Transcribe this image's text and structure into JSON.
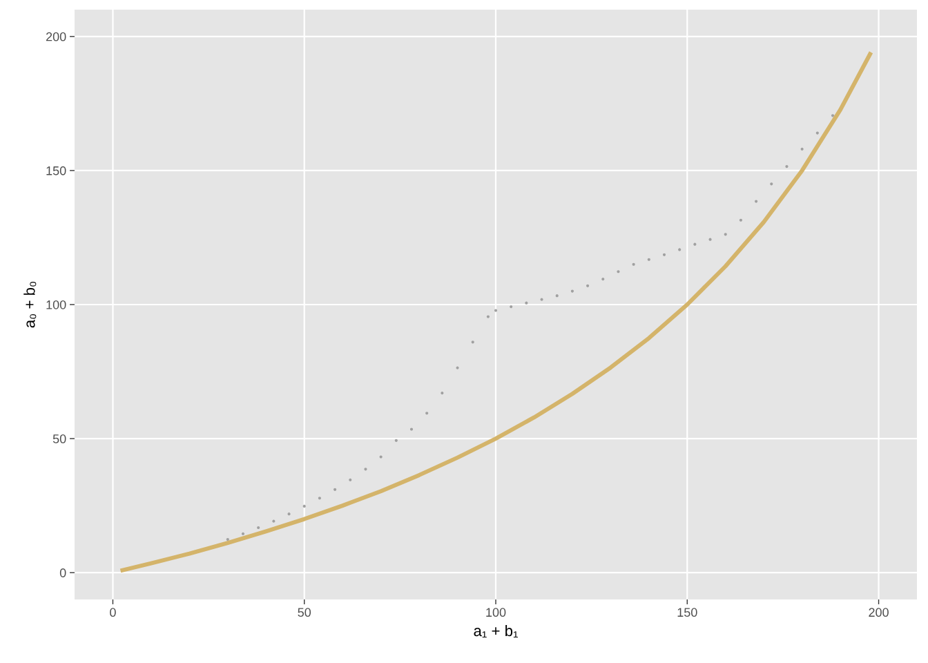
{
  "chart_data": {
    "type": "scatter",
    "xlabel": "a₁ + b₁",
    "ylabel": "a₀ + b₀",
    "xlim": [
      -10,
      210
    ],
    "ylim": [
      -10,
      210
    ],
    "xticks": [
      0,
      50,
      100,
      150,
      200
    ],
    "yticks": [
      0,
      50,
      100,
      150,
      200
    ],
    "grid": true,
    "marker": "circle",
    "series": [
      {
        "color": "#a0a0a0",
        "x": [
          30,
          34,
          38,
          42,
          46,
          50,
          54,
          58,
          62,
          66,
          70,
          74,
          78,
          82,
          86,
          90,
          94,
          98,
          100,
          104,
          108,
          112,
          116,
          120,
          124,
          128,
          132,
          136,
          140,
          144,
          148,
          152,
          156,
          160,
          164,
          168,
          172,
          176,
          180,
          184,
          188
        ],
        "values": [
          12.4,
          14.5,
          16.8,
          19.2,
          21.9,
          24.8,
          27.8,
          31.0,
          34.6,
          38.6,
          43.2,
          49.3,
          53.5,
          59.5,
          67,
          76.4,
          86,
          95.5,
          97.8,
          99.2,
          100.6,
          101.9,
          103.3,
          105,
          107,
          109.5,
          112.3,
          115,
          116.8,
          118.6,
          120.5,
          122.5,
          124.3,
          126.2,
          131.5,
          138.5,
          145,
          151.5,
          158,
          164,
          170.5
        ]
      },
      {
        "type": "line",
        "color": "#d4b46a",
        "marker": "none",
        "line_style": "solid",
        "x": [
          2,
          10,
          20,
          30,
          40,
          50,
          60,
          70,
          80,
          90,
          100,
          110,
          120,
          130,
          140,
          150,
          160,
          170,
          180,
          190,
          198
        ],
        "values": [
          0.7,
          3.5,
          7.1,
          11.1,
          15.4,
          20,
          25,
          30.4,
          36.4,
          42.9,
          50,
          57.9,
          66.7,
          76.5,
          87.5,
          100,
          114.3,
          130.8,
          150,
          172.7,
          194.1
        ]
      }
    ]
  }
}
